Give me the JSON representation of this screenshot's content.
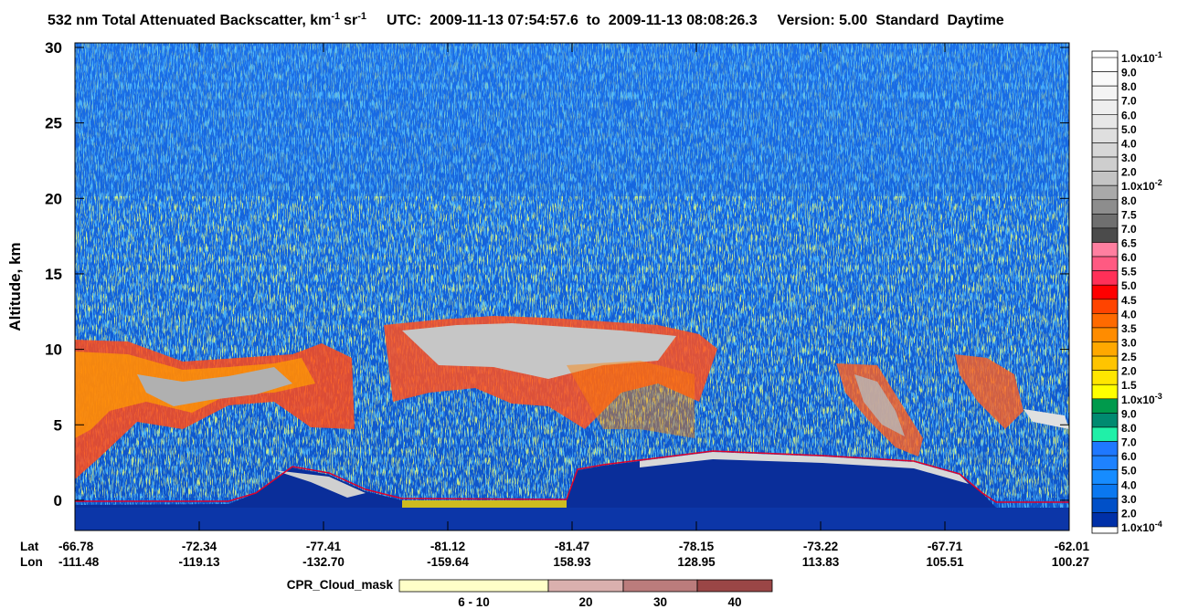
{
  "chart_data": {
    "type": "curtain",
    "header": {
      "title": "532 nm Total Attenuated Backscatter, km",
      "title_exp1": "-1",
      "title_unit2": "sr",
      "title_exp2": "-1",
      "utc": "UTC:  2009-11-13 07:54:57.6  to  2009-11-13 08:08:26.3",
      "version": "Version: 5.00  Standard  Daytime"
    },
    "y_label": "Altitude, km",
    "ylim": [
      -2,
      30.3
    ],
    "yticks": [
      0,
      5,
      10,
      15,
      20,
      25,
      30
    ],
    "x_rows": [
      {
        "name": "Lat",
        "labels": [
          "-66.78",
          "-72.34",
          "-77.41",
          "-81.12",
          "-81.47",
          "-78.15",
          "-73.22",
          "-67.71",
          "-62.01"
        ]
      },
      {
        "name": "Lon",
        "labels": [
          "-111.48",
          "-119.13",
          "-132.70",
          "-159.64",
          "158.93",
          "128.95",
          "113.83",
          "105.51",
          "100.27"
        ]
      }
    ],
    "colorbar": {
      "labels": [
        {
          "text": "1.0x10",
          "sup": "-1"
        },
        "9.0",
        "8.0",
        "7.0",
        "6.0",
        "5.0",
        "4.0",
        "3.0",
        "2.0",
        {
          "text": "1.0x10",
          "sup": "-2"
        },
        "8.0",
        "7.5",
        "7.0",
        "6.5",
        "6.0",
        "5.5",
        "5.0",
        "4.5",
        "4.0",
        "3.5",
        "3.0",
        "2.5",
        "2.0",
        "1.5",
        {
          "text": "1.0x10",
          "sup": "-3"
        },
        "9.0",
        "8.0",
        "7.0",
        "6.0",
        "5.0",
        "4.0",
        "3.0",
        "2.0",
        {
          "text": "1.0x10",
          "sup": "-4"
        }
      ],
      "colors": [
        "#ffffff",
        "#fafafa",
        "#f4f4f4",
        "#eeeeee",
        "#e7e7e7",
        "#dfdfdf",
        "#d7d7d7",
        "#cecece",
        "#c4c4c4",
        "#a9a9a9",
        "#8d8d8d",
        "#6f6f6f",
        "#4b4b4b",
        "#ff7fa0",
        "#ff5a82",
        "#ff3058",
        "#ff0000",
        "#ff4400",
        "#ff6a00",
        "#ff8c00",
        "#ffa800",
        "#ffc400",
        "#ffe600",
        "#ffff00",
        "#009a4c",
        "#008a70",
        "#20f0a8",
        "#1f78ff",
        "#1e82ff",
        "#168cff",
        "#0a78f0",
        "#0050c8",
        "#0030a8"
      ]
    },
    "cpr_legend": {
      "title": "CPR_Cloud_mask",
      "items": [
        {
          "label": "6 - 10",
          "color": "#ffffc8"
        },
        {
          "label": "20",
          "color": "#dab0ae"
        },
        {
          "label": "30",
          "color": "#bb7c7c"
        },
        {
          "label": "40",
          "color": "#9a4646"
        }
      ]
    }
  }
}
